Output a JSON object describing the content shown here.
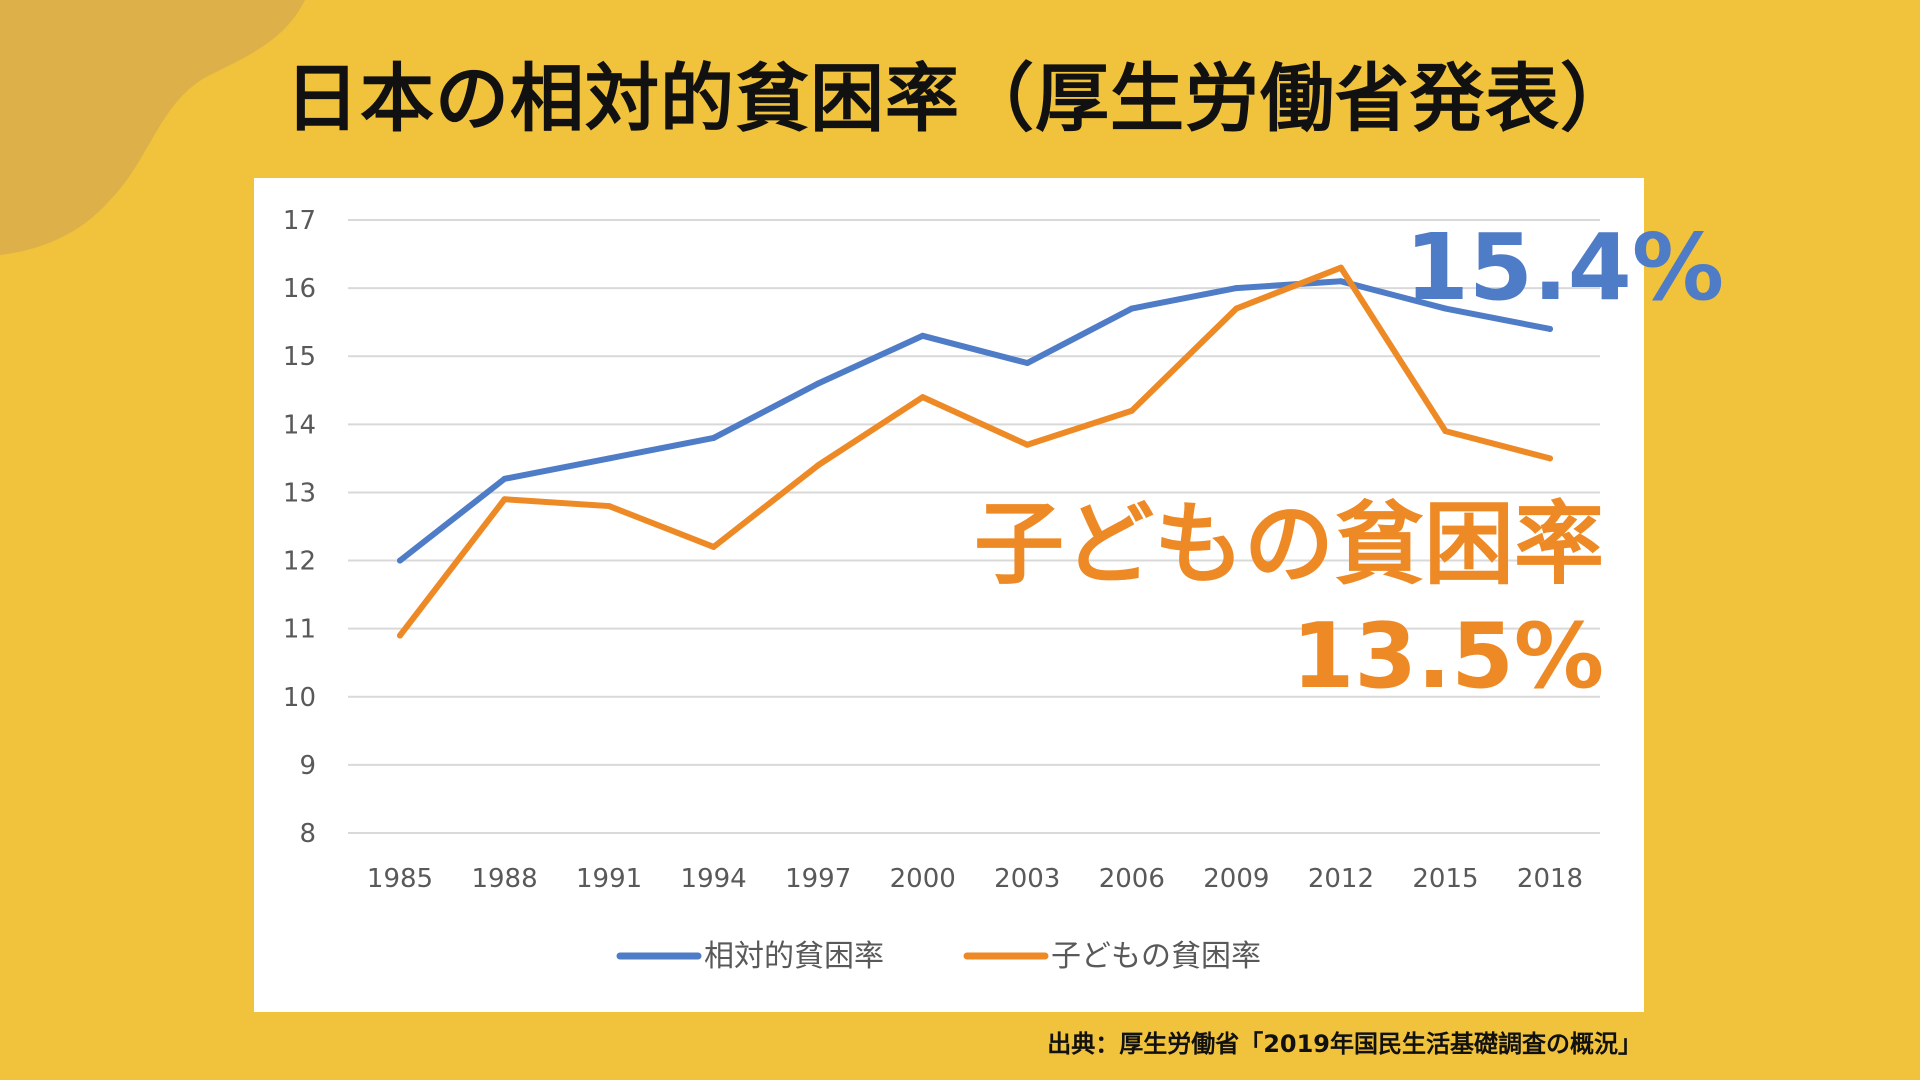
{
  "page": {
    "title": "日本の相対的貧困率（厚生労働省発表）",
    "source": "出典：厚生労働省「2019年国民生活基礎調査の概況」",
    "callout_overall": "15.4%",
    "callout_child_label": "子どもの貧困率",
    "callout_child_value": "13.5%"
  },
  "colors": {
    "background": "#f1c23c",
    "overall": "#4f7cc6",
    "child": "#ee8a26",
    "grid": "#d9d9d9",
    "tick": "#595959"
  },
  "chart_data": {
    "type": "line",
    "title": "日本の相対的貧困率（厚生労働省発表）",
    "categories": [
      "1985",
      "1988",
      "1991",
      "1994",
      "1997",
      "2000",
      "2003",
      "2006",
      "2009",
      "2012",
      "2015",
      "2018"
    ],
    "yticks": [
      "8",
      "9",
      "10",
      "11",
      "12",
      "13",
      "14",
      "15",
      "16",
      "17"
    ],
    "ylim": [
      8,
      17
    ],
    "grid": true,
    "legend_position": "bottom",
    "series": [
      {
        "name": "相対的貧困率",
        "color": "#4f7cc6",
        "values": [
          12.0,
          13.2,
          13.5,
          13.8,
          14.6,
          15.3,
          14.9,
          15.7,
          16.0,
          16.1,
          15.7,
          15.4
        ]
      },
      {
        "name": "子どもの貧困率",
        "color": "#ee8a26",
        "values": [
          10.9,
          12.9,
          12.8,
          12.2,
          13.4,
          14.4,
          13.7,
          14.2,
          15.7,
          16.3,
          13.9,
          13.5
        ]
      }
    ]
  }
}
